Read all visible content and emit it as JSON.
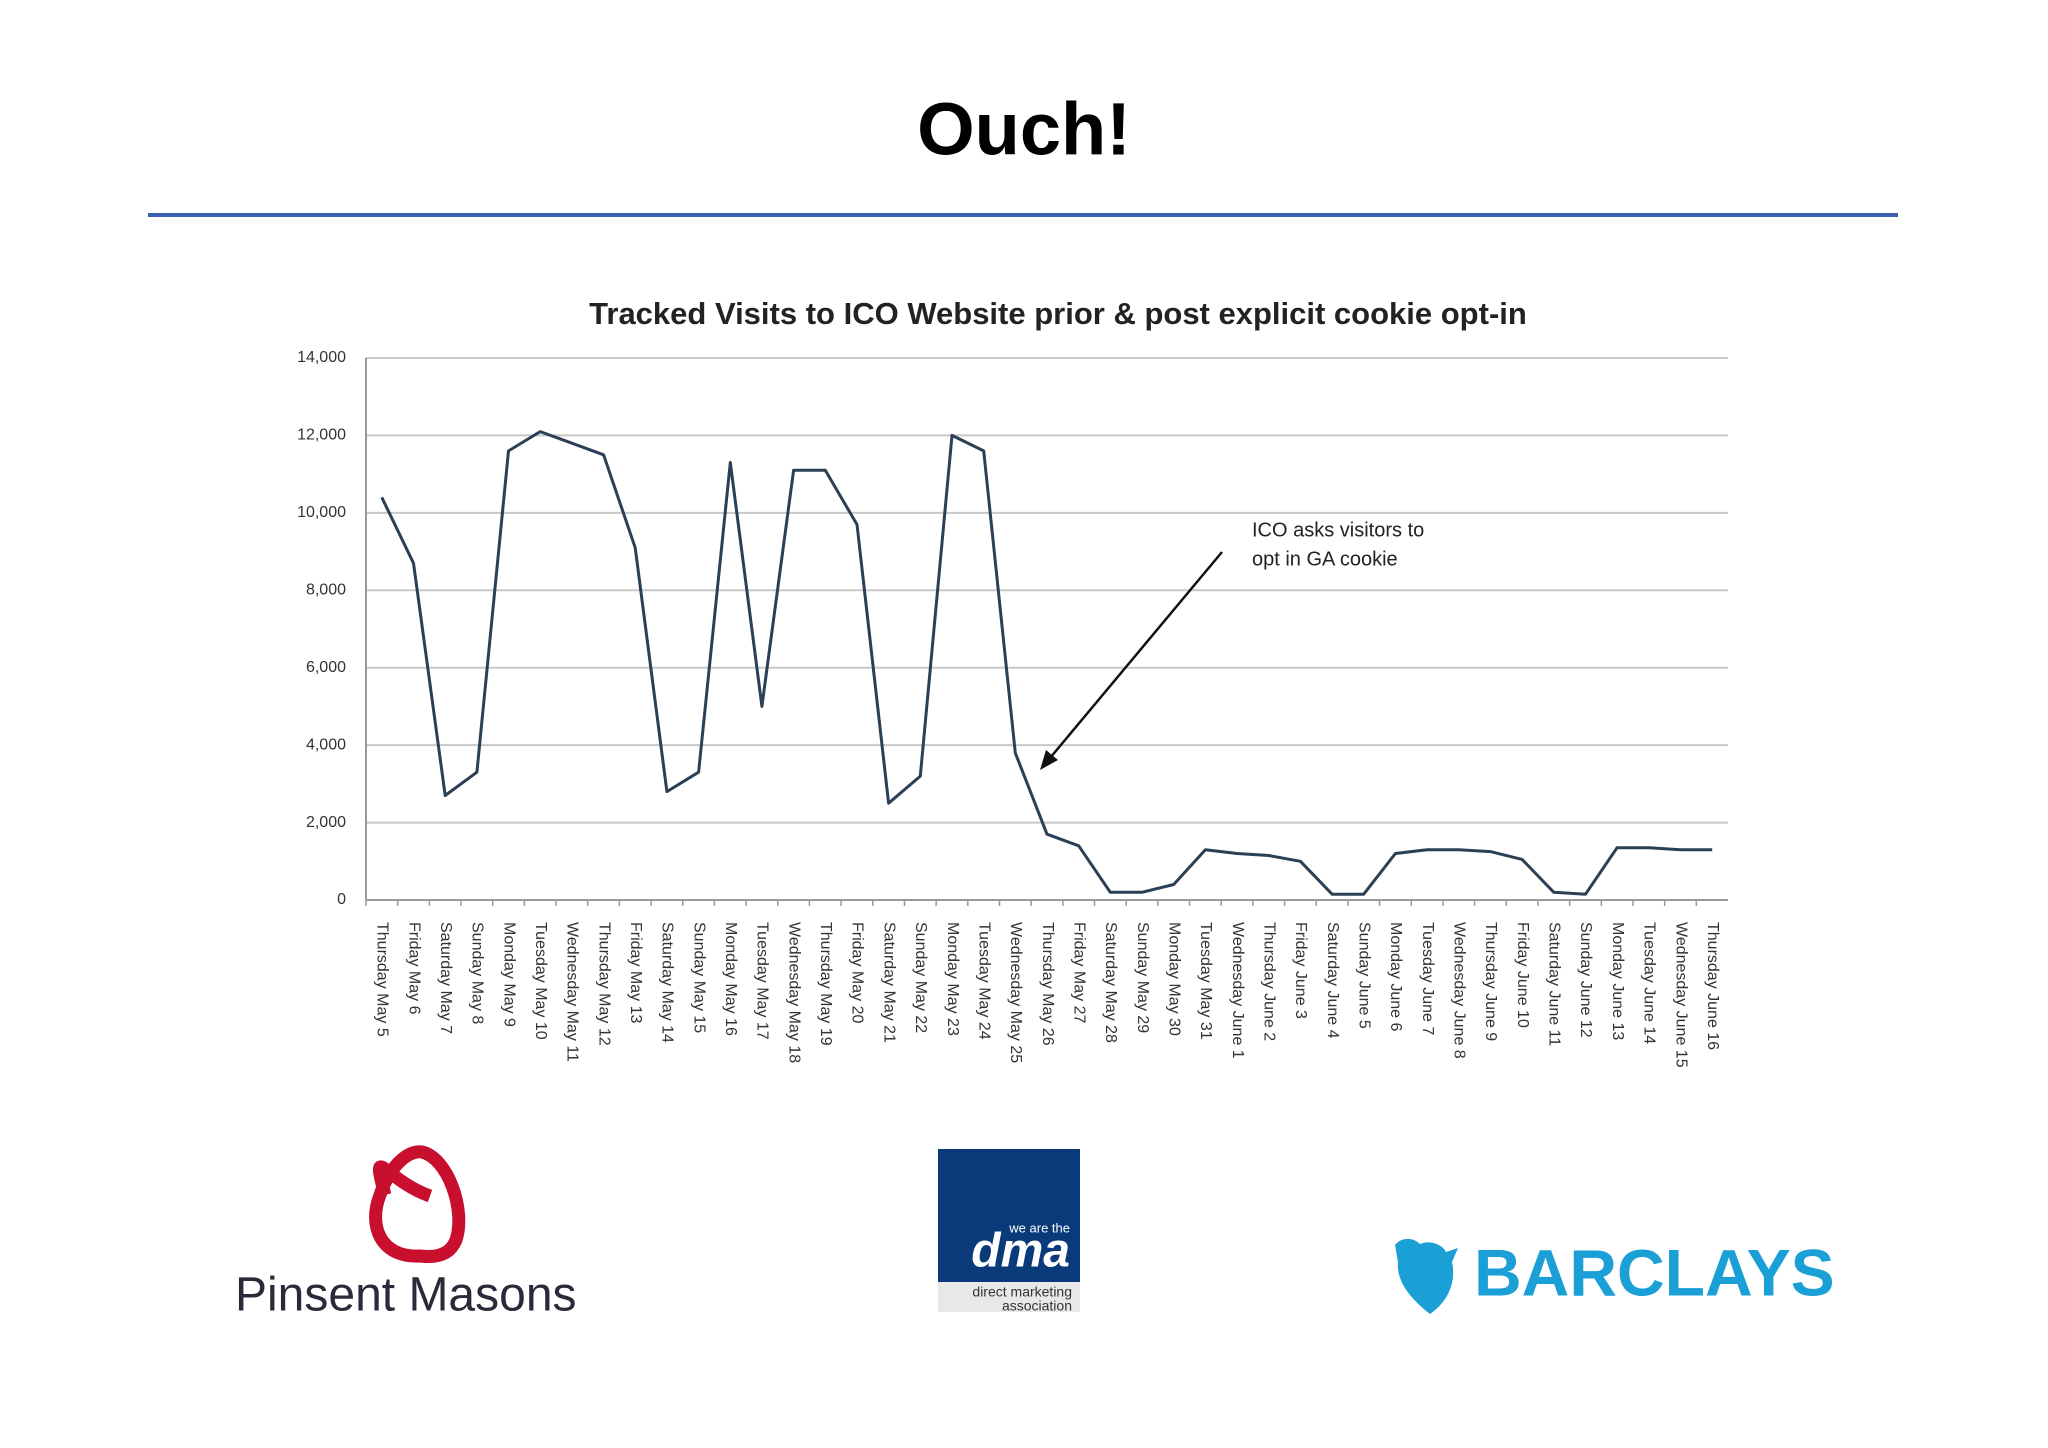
{
  "slide": {
    "title": "Ouch!"
  },
  "chart_data": {
    "type": "line",
    "title": "Tracked Visits to ICO Website prior & post explicit cookie opt-in",
    "categories": [
      "Thursday May 5",
      "Friday May 6",
      "Saturday May 7",
      "Sunday May 8",
      "Monday May 9",
      "Tuesday May 10",
      "Wednesday May 11",
      "Thursday May 12",
      "Friday May 13",
      "Saturday May 14",
      "Sunday May 15",
      "Monday May 16",
      "Tuesday May 17",
      "Wednesday May 18",
      "Thursday May 19",
      "Friday May 20",
      "Saturday May 21",
      "Sunday May 22",
      "Monday May 23",
      "Tuesday May 24",
      "Wednesday May 25",
      "Thursday May 26",
      "Friday May 27",
      "Saturday May 28",
      "Sunday May 29",
      "Monday May 30",
      "Tuesday May 31",
      "Wednesday June 1",
      "Thursday June 2",
      "Friday June 3",
      "Saturday June 4",
      "Sunday June 5",
      "Monday June 6",
      "Tuesday June 7",
      "Wednesday June 8",
      "Thursday June 9",
      "Friday June 10",
      "Saturday June 11",
      "Sunday June 12",
      "Monday June 13",
      "Tuesday June 14",
      "Wednesday June 15",
      "Thursday June 16"
    ],
    "values": [
      10400,
      8700,
      2700,
      3300,
      11600,
      12100,
      11800,
      11500,
      9100,
      2800,
      3300,
      11300,
      5000,
      11100,
      11100,
      9700,
      2500,
      3200,
      12000,
      11600,
      3800,
      1700,
      1400,
      200,
      200,
      400,
      1300,
      1200,
      1150,
      1000,
      150,
      150,
      1200,
      1300,
      1300,
      1250,
      1050,
      200,
      150,
      1350,
      1350,
      1300,
      1300
    ],
    "color": "#2b3f55",
    "ylim": [
      0,
      14000
    ],
    "yticks": [
      0,
      {
        "value": 2000,
        "label": "2,000"
      },
      {
        "value": 4000,
        "label": "4,000"
      },
      {
        "value": 6000,
        "label": "6,000"
      },
      {
        "value": 8000,
        "label": "8,000"
      },
      {
        "value": 10000,
        "label": "10,000"
      },
      {
        "value": 12000,
        "label": "12,000"
      },
      {
        "value": 14000,
        "label": "14,000"
      }
    ],
    "grid": true,
    "annotation": {
      "lines": [
        "ICO asks visitors to",
        "opt in GA cookie"
      ]
    }
  },
  "logos": {
    "pinsent": "Pinsent Masons",
    "dma": {
      "tag": "we are the",
      "name": "dma",
      "sub1": "direct marketing",
      "sub2": "association"
    },
    "barclays": "BARCLAYS"
  }
}
